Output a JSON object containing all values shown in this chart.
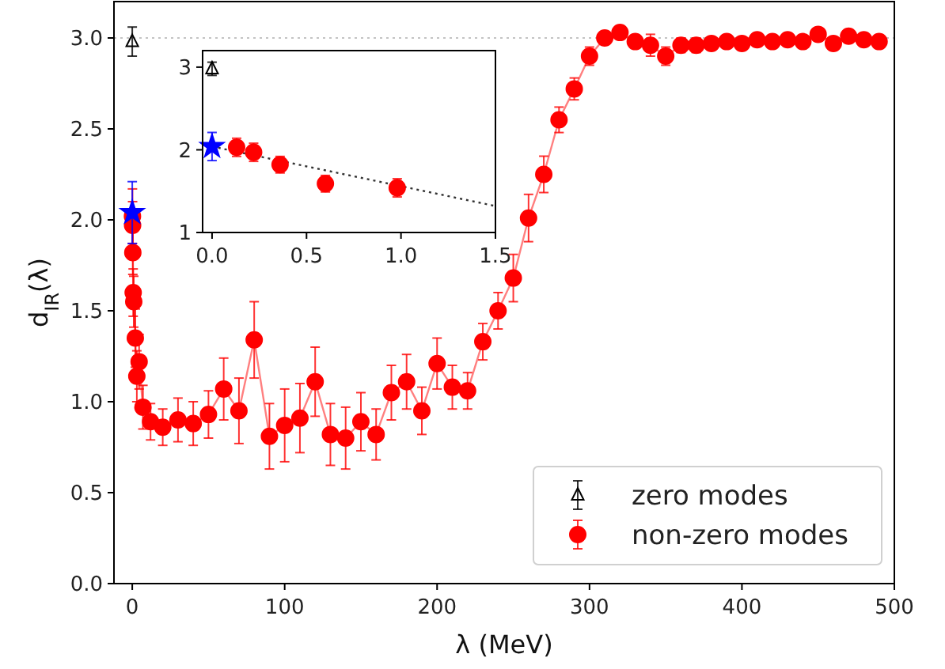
{
  "chart_data": [
    {
      "type": "scatter",
      "xlabel": "λ (MeV)",
      "ylabel": "d$_{IR}$(λ)",
      "xlim": [
        -12,
        500
      ],
      "ylim": [
        0,
        3.2
      ],
      "xticks": [
        0,
        100,
        200,
        300,
        400,
        500
      ],
      "yticks": [
        {
          "value": 0,
          "label": "0.0"
        },
        {
          "value": 0.5,
          "label": "0.5"
        },
        {
          "value": 1,
          "label": "1.0"
        },
        {
          "value": 1.5,
          "label": "1.5"
        },
        {
          "value": 2,
          "label": "2.0"
        },
        {
          "value": 2.5,
          "label": "2.5"
        },
        {
          "value": 3,
          "label": "3.0"
        }
      ],
      "legend": "bottom right",
      "ref_lines": [
        {
          "axis": "y",
          "value": 3,
          "color": "#b0b0b0",
          "line_style": "dotted"
        }
      ],
      "series": [
        {
          "name": "zero modes",
          "type": "scatter",
          "marker": "triangle",
          "color": "#000000",
          "x": [
            0
          ],
          "values": [
            2.98
          ],
          "errors": [
            0.08
          ]
        },
        {
          "name": "non-zero modes",
          "type": "line",
          "marker": "circle",
          "line_style": "solid",
          "color": "#ff0000",
          "x": [
            0.13,
            0.22,
            0.37,
            0.6,
            0.98,
            2,
            3,
            4.5,
            7,
            12,
            20,
            30,
            40,
            50,
            60,
            70,
            80,
            90,
            100,
            110,
            120,
            130,
            140,
            150,
            160,
            170,
            180,
            190,
            200,
            210,
            220,
            230,
            240,
            250,
            260,
            270,
            280,
            290,
            300,
            310,
            320,
            330,
            340,
            350,
            360,
            370,
            380,
            390,
            400,
            410,
            420,
            430,
            440,
            450,
            460,
            470,
            480,
            490
          ],
          "values": [
            2.02,
            1.97,
            1.82,
            1.6,
            1.55,
            1.35,
            1.14,
            1.22,
            0.97,
            0.89,
            0.86,
            0.9,
            0.88,
            0.93,
            1.07,
            0.95,
            1.34,
            0.81,
            0.87,
            0.91,
            1.11,
            0.82,
            0.8,
            0.89,
            0.82,
            1.05,
            1.11,
            0.95,
            1.21,
            1.08,
            1.06,
            1.33,
            1.5,
            1.68,
            2.01,
            2.25,
            2.55,
            2.72,
            2.9,
            3.0,
            3.03,
            2.98,
            2.96,
            2.9,
            2.96,
            2.96,
            2.97,
            2.98,
            2.97,
            2.99,
            2.98,
            2.99,
            2.98,
            3.02,
            2.97,
            3.01,
            2.99,
            2.98
          ],
          "errors": [
            0.15,
            0.13,
            0.12,
            0.13,
            0.14,
            0.16,
            0.14,
            0.15,
            0.12,
            0.1,
            0.1,
            0.12,
            0.12,
            0.13,
            0.17,
            0.18,
            0.21,
            0.18,
            0.2,
            0.19,
            0.19,
            0.17,
            0.17,
            0.16,
            0.14,
            0.15,
            0.15,
            0.13,
            0.14,
            0.12,
            0.1,
            0.1,
            0.1,
            0.13,
            0.13,
            0.1,
            0.07,
            0.06,
            0.05,
            0.03,
            0.03,
            0.03,
            0.06,
            0.05,
            0.04,
            0.04,
            0.03,
            0.03,
            0.03,
            0.03,
            0.03,
            0.03,
            0.03,
            0.03,
            0.03,
            0.03,
            0.03,
            0.03
          ]
        },
        {
          "type": "scatter",
          "marker": "star",
          "color": "#0000ff",
          "x": [
            0
          ],
          "values": [
            2.04
          ],
          "errors": [
            0.17
          ]
        }
      ]
    },
    {
      "type": "scatter",
      "xlim": [
        -0.05,
        1.5
      ],
      "ylim": [
        1,
        3.2
      ],
      "xticks": [
        {
          "value": 0,
          "label": "0.0"
        },
        {
          "value": 0.5,
          "label": "0.5"
        },
        {
          "value": 1,
          "label": "1.0"
        },
        {
          "value": 1.5,
          "label": "1.5"
        }
      ],
      "yticks": [
        1,
        2,
        3
      ],
      "series": [
        {
          "type": "line",
          "marker": "none",
          "line_style": "dotted",
          "color": "#333333",
          "x": [
            0,
            1.5
          ],
          "values": [
            2.04,
            1.32
          ]
        },
        {
          "type": "scatter",
          "marker": "triangle",
          "color": "#000000",
          "x": [
            0
          ],
          "values": [
            2.98
          ],
          "errors": [
            0.08
          ]
        },
        {
          "type": "scatter",
          "marker": "star",
          "color": "#0000ff",
          "x": [
            0
          ],
          "values": [
            2.04
          ],
          "errors": [
            0.17
          ]
        },
        {
          "type": "scatter",
          "marker": "circle",
          "color": "#ff0000",
          "x": [
            0.13,
            0.22,
            0.36,
            0.6,
            0.98
          ],
          "values": [
            2.03,
            1.97,
            1.82,
            1.59,
            1.54
          ],
          "errors": [
            0.11,
            0.11,
            0.1,
            0.1,
            0.11
          ]
        }
      ]
    }
  ]
}
